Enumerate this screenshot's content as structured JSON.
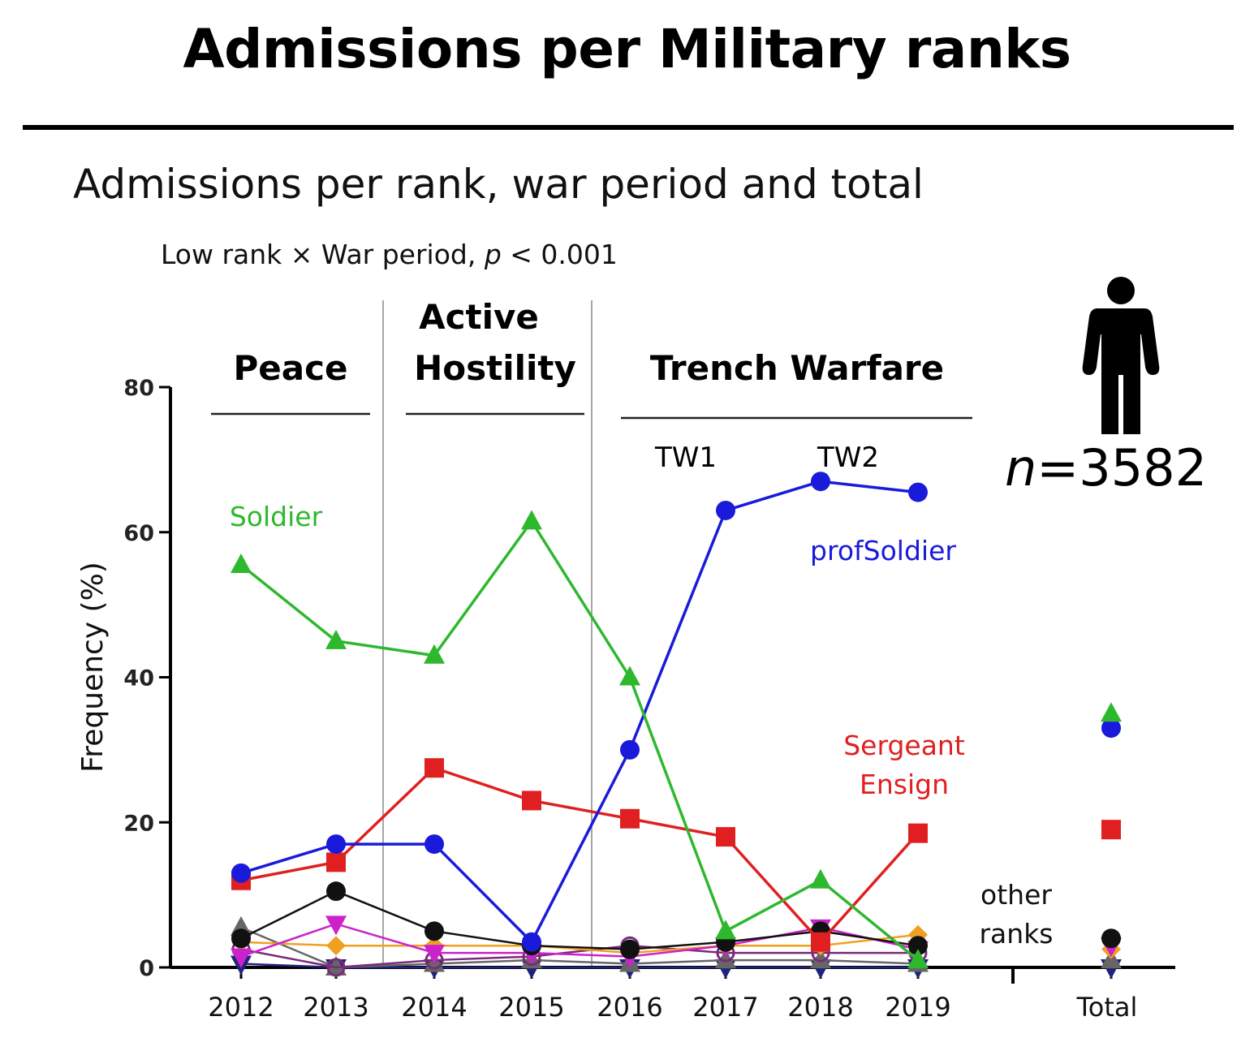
{
  "header": {
    "title": "Admissions per Military ranks",
    "subtitle": "Admissions per rank, war period and total",
    "stat_prefix": "Low rank × War period, ",
    "stat_p": "p",
    "stat_suffix": " < 0.001",
    "n_italic": "n",
    "n_value": "=3582"
  },
  "periods": {
    "peace": "Peace",
    "active_line1": "Active",
    "active_line2": "Hostility",
    "trench": "Trench Warfare",
    "tw1": "TW1",
    "tw2": "TW2"
  },
  "icons": {
    "person": "person-icon"
  },
  "chart_data": {
    "type": "line",
    "title": "Admissions per rank, war period and total",
    "xlabel": "",
    "ylabel": "Frequency (%)",
    "ylim": [
      0,
      80
    ],
    "yticks": [
      "0",
      "20",
      "40",
      "60",
      "80"
    ],
    "categories": [
      "2012",
      "2013",
      "2014",
      "2015",
      "2016",
      "2017",
      "2018",
      "2019"
    ],
    "total_label": "Total",
    "series": [
      {
        "name": "Soldier",
        "color": "#2eb82e",
        "marker": "triangle",
        "values": [
          55.5,
          45,
          43,
          61.5,
          40,
          5,
          12,
          1
        ],
        "total": 35
      },
      {
        "name": "profSoldier",
        "color": "#1a1adb",
        "marker": "circle",
        "values": [
          13,
          17,
          17,
          3.5,
          30,
          63,
          67,
          65.5
        ],
        "total": 33
      },
      {
        "name": "Sergeant Ensign",
        "color": "#e02020",
        "marker": "square",
        "values": [
          12,
          14.5,
          27.5,
          23,
          20.5,
          18,
          3.5,
          18.5
        ],
        "total": 19
      },
      {
        "name": "other ranks (black)",
        "color": "#111111",
        "marker": "circle",
        "values": [
          4,
          10.5,
          5,
          3,
          2.5,
          3.5,
          5,
          3
        ],
        "total": 4
      },
      {
        "name": "other ranks (magenta)",
        "color": "#cc22cc",
        "marker": "triangle-down",
        "values": [
          1.5,
          6,
          2,
          2,
          1.5,
          3,
          5.5,
          2.5
        ],
        "total": 3
      },
      {
        "name": "other ranks (orange)",
        "color": "#f0a020",
        "marker": "diamond",
        "values": [
          3.5,
          3,
          3,
          3,
          2,
          3,
          3,
          4.5
        ],
        "total": 2.5
      },
      {
        "name": "other ranks (purple)",
        "color": "#7a2a7a",
        "marker": "circle-open",
        "values": [
          2.5,
          0,
          1,
          1.5,
          3,
          2,
          2,
          2
        ],
        "total": 4
      },
      {
        "name": "other ranks (gray)",
        "color": "#666666",
        "marker": "triangle",
        "values": [
          5.5,
          0,
          0.5,
          1,
          0.5,
          1,
          1,
          0.5
        ],
        "total": 1
      },
      {
        "name": "other ranks (navy)",
        "color": "#22227a",
        "marker": "triangle-down",
        "values": [
          0.5,
          0,
          0,
          0,
          0,
          0,
          0,
          0
        ],
        "total": 0
      }
    ],
    "labels": {
      "soldier": "Soldier",
      "prof": "profSoldier",
      "sergeant_line1": "Sergeant",
      "sergeant_line2": "Ensign",
      "other_line1": "other",
      "other_line2": "ranks"
    }
  }
}
